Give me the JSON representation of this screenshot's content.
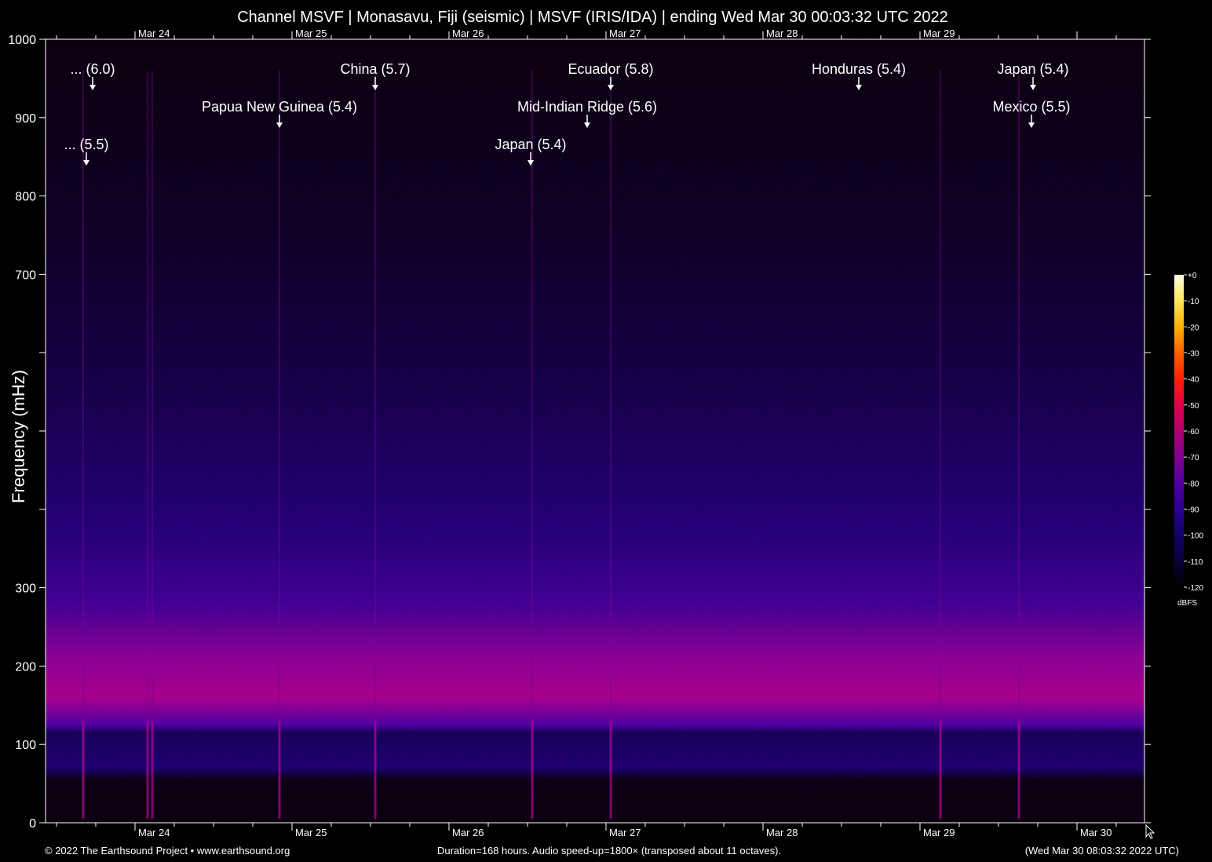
{
  "chart_data": {
    "type": "heatmap",
    "title": "Channel MSVF | Monasavu, Fiji (seismic) | MSVF (IRIS/IDA) | ending Wed Mar 30 00:03:32 UTC 2022",
    "ylabel": "Frequency (mHz)",
    "ylim": [
      0,
      1000
    ],
    "y_ticks": [
      0,
      100,
      200,
      300,
      400,
      500,
      600,
      700,
      800,
      900,
      1000
    ],
    "y_tick_labels": [
      "0",
      "100",
      "200",
      "300",
      "",
      "",
      "",
      "700",
      "800",
      "900",
      "1000"
    ],
    "xlim_days": [
      -6.57,
      0.43
    ],
    "x_ticks": [
      {
        "day": -6.0,
        "label": "Mar 24",
        "bottom": true,
        "top": true
      },
      {
        "day": -5.0,
        "label": "Mar 25",
        "bottom": true,
        "top": true
      },
      {
        "day": -4.0,
        "label": "Mar 26",
        "bottom": true,
        "top": true
      },
      {
        "day": -3.0,
        "label": "Mar 27",
        "bottom": true,
        "top": true
      },
      {
        "day": -2.0,
        "label": "Mar 28",
        "bottom": true,
        "top": true
      },
      {
        "day": -1.0,
        "label": "Mar 29",
        "bottom": true,
        "top": true
      },
      {
        "day": 0.0,
        "label": "Mar 30",
        "bottom": true,
        "top": false
      }
    ],
    "annotations": [
      {
        "label": "... (6.0)",
        "day": -6.27,
        "row": 0
      },
      {
        "label": "... (5.5)",
        "day": -6.31,
        "row": 2
      },
      {
        "label": "Papua New Guinea (5.4)",
        "day": -5.08,
        "row": 1
      },
      {
        "label": "China (5.7)",
        "day": -4.47,
        "row": 0
      },
      {
        "label": "Mid-Indian Ridge (5.6)",
        "day": -3.12,
        "row": 1
      },
      {
        "label": "Japan (5.4)",
        "day": -3.48,
        "row": 2
      },
      {
        "label": "Ecuador (5.8)",
        "day": -2.97,
        "row": 0
      },
      {
        "label": "Honduras (5.4)",
        "day": -1.39,
        "row": 0
      },
      {
        "label": "Japan (5.4)",
        "day": -0.28,
        "row": 0
      },
      {
        "label": "Mexico (5.5)",
        "day": -0.29,
        "row": 1
      }
    ],
    "event_lines": [
      -6.33,
      -5.92,
      -5.89,
      -5.08,
      -4.47,
      -3.47,
      -2.97,
      -0.87,
      -0.37
    ],
    "colorbar": {
      "unit": "dBFS",
      "ticks": [
        "+0",
        "-10",
        "-20",
        "-30",
        "-40",
        "-50",
        "-60",
        "-70",
        "-80",
        "-90",
        "-100",
        "-110",
        "-120"
      ],
      "colors": [
        "#ffffe6",
        "#ffe85a",
        "#ffb000",
        "#ff6000",
        "#ff2000",
        "#e0004a",
        "#b0006c",
        "#800090",
        "#5000a0",
        "#2a0090",
        "#14006a",
        "#080038",
        "#000000"
      ]
    }
  },
  "footer": {
    "left": "© 2022 The Earthsound Project • www.earthsound.org",
    "center": "Duration=168 hours. Audio speed-up=1800× (transposed about 11 octaves).",
    "right": "(Wed Mar 30 08:03:32 2022 UTC)"
  }
}
